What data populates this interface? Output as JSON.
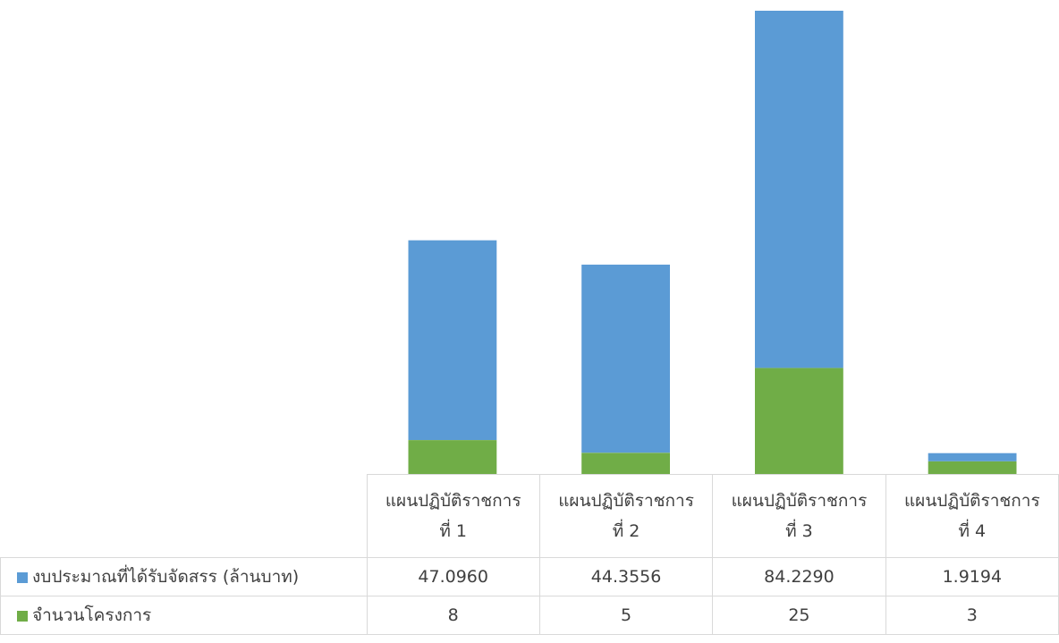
{
  "colors": {
    "budget": "#5b9bd5",
    "projects": "#70ad47",
    "grid": "#d9d9d9"
  },
  "chart_data": {
    "type": "bar",
    "stacked": true,
    "categories": [
      [
        "แผนปฏิบัติราชการ",
        "ที่ 1"
      ],
      [
        "แผนปฏิบัติราชการ",
        "ที่ 2"
      ],
      [
        "แผนปฏิบัติราชการ",
        "ที่ 3"
      ],
      [
        "แผนปฏิบัติราชการ",
        "ที่ 4"
      ]
    ],
    "series": [
      {
        "name": "จำนวนโครงการ",
        "values": [
          8,
          5,
          25,
          3
        ],
        "display": [
          "8",
          "5",
          "25",
          "3"
        ],
        "color": "#70ad47"
      },
      {
        "name": "งบประมาณที่ได้รับจัดสรร (ล้านบาท)",
        "values": [
          47.096,
          44.3556,
          84.229,
          1.9194
        ],
        "display": [
          "47.0960",
          "44.3556",
          "84.2290",
          "1.9194"
        ],
        "color": "#5b9bd5"
      }
    ],
    "title": "",
    "xlabel": "",
    "ylabel": "",
    "ylim": [
      0,
      110
    ],
    "grid": false,
    "legend": "data-table"
  }
}
